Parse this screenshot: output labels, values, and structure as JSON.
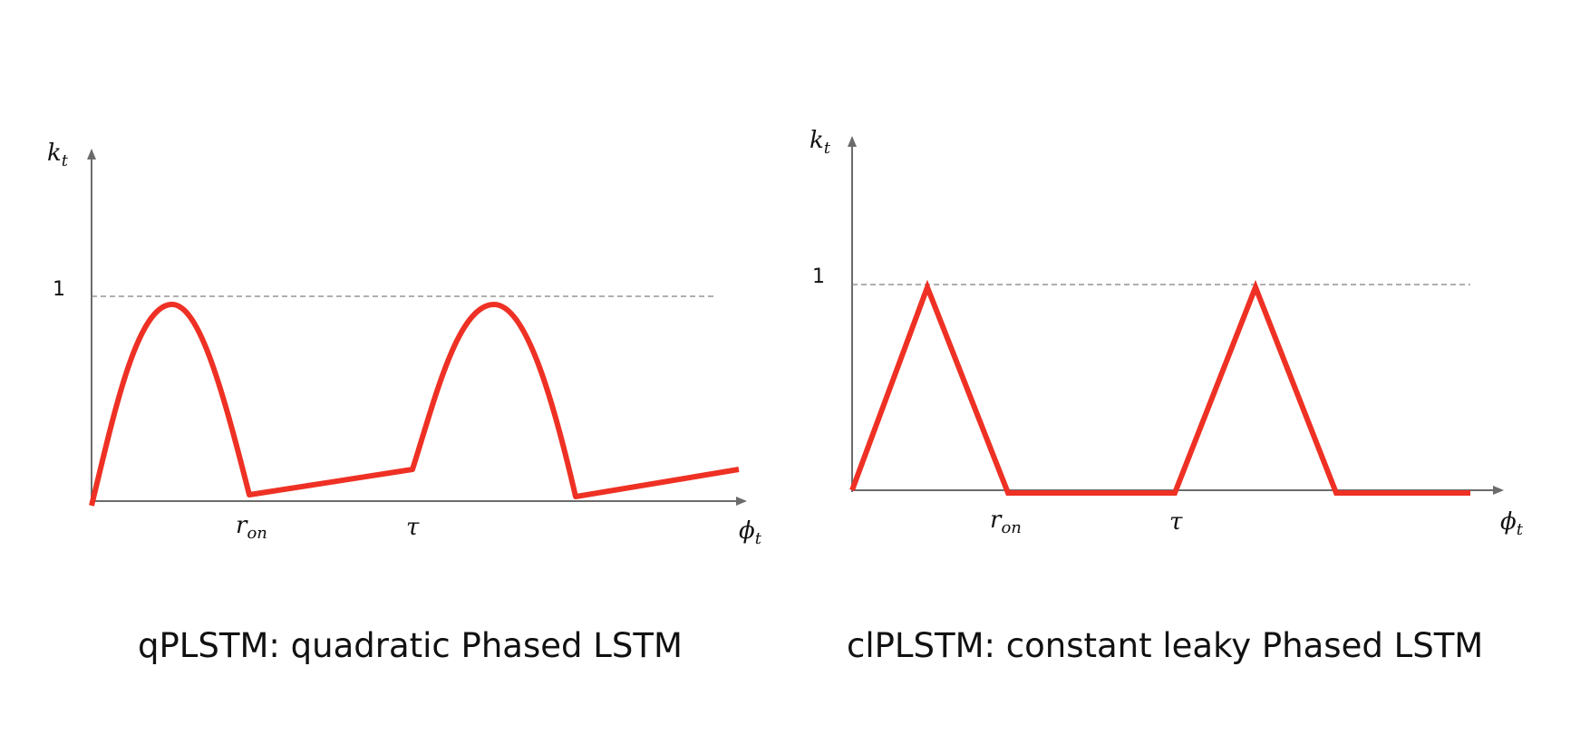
{
  "colors": {
    "curve": "#ee3124",
    "axis": "#6b6b6b",
    "dashed": "#7f7f7f",
    "text": "#111111"
  },
  "panels": [
    {
      "id": "qplstm",
      "y_axis_label_base": "k",
      "y_axis_label_sub": "t",
      "x_axis_label_base": "ϕ",
      "x_axis_label_sub": "t",
      "y_tick_label": "1",
      "x_tick_ron_base": "r",
      "x_tick_ron_sub": "on",
      "x_tick_tau": "τ",
      "caption": "qPLSTM: quadratic Phased LSTM"
    },
    {
      "id": "clplstm",
      "y_axis_label_base": "k",
      "y_axis_label_sub": "t",
      "x_axis_label_base": "ϕ",
      "x_axis_label_sub": "t",
      "y_tick_label": "1",
      "x_tick_ron_base": "r",
      "x_tick_ron_sub": "on",
      "x_tick_tau": "τ",
      "caption": "clPLSTM: constant leaky Phased LSTM"
    }
  ]
}
